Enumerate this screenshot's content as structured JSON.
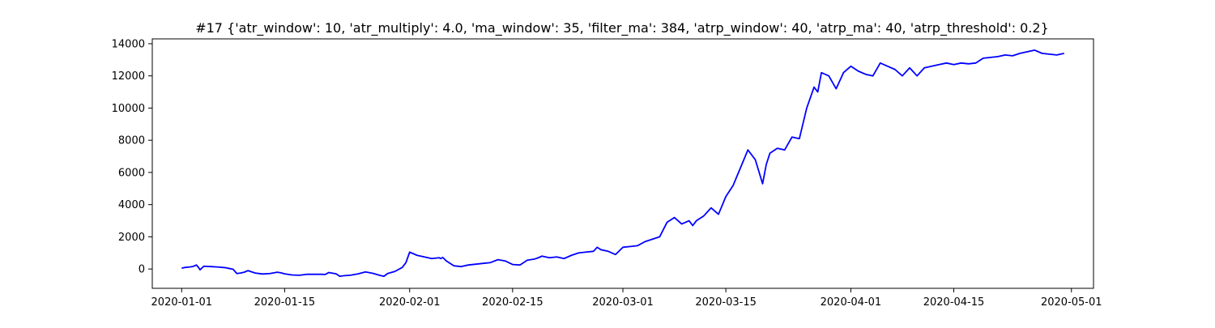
{
  "chart_data": {
    "type": "line",
    "title": "#17 {'atr_window': 10, 'atr_multiply': 4.0, 'ma_window': 35, 'filter_ma': 384, 'atrp_window': 40, 'atrp_ma': 40, 'atrp_threshold': 0.2}",
    "xlabel": "",
    "ylabel": "",
    "x_is_date": true,
    "xlim": [
      "2019-12-28",
      "2020-05-04"
    ],
    "ylim": [
      -1200,
      14300
    ],
    "x_ticks": [
      "2020-01-01",
      "2020-01-15",
      "2020-02-01",
      "2020-02-15",
      "2020-03-01",
      "2020-03-15",
      "2020-04-01",
      "2020-04-15",
      "2020-05-01"
    ],
    "y_ticks": [
      0,
      2000,
      4000,
      6000,
      8000,
      10000,
      12000,
      14000
    ],
    "y_tick_labels": [
      "0",
      "2000",
      "4000",
      "6000",
      "8000",
      "10000",
      "12000",
      "14000"
    ],
    "grid": false,
    "legend": "none",
    "series": [
      {
        "color": "#0000ff",
        "x": [
          "2020-01-01",
          "2020-01-01T12:00",
          "2020-01-02",
          "2020-01-02T12:00",
          "2020-01-03",
          "2020-01-03T06:00",
          "2020-01-03T12:00",
          "2020-01-04",
          "2020-01-05",
          "2020-01-06",
          "2020-01-07",
          "2020-01-07T12:00",
          "2020-01-08",
          "2020-01-08T12:00",
          "2020-01-09",
          "2020-01-09T12:00",
          "2020-01-10",
          "2020-01-11",
          "2020-01-12",
          "2020-01-13",
          "2020-01-14",
          "2020-01-14T12:00",
          "2020-01-15",
          "2020-01-16",
          "2020-01-17",
          "2020-01-18",
          "2020-01-19",
          "2020-01-20",
          "2020-01-20T12:00",
          "2020-01-21",
          "2020-01-22",
          "2020-01-22T12:00",
          "2020-01-23",
          "2020-01-24",
          "2020-01-25",
          "2020-01-26",
          "2020-01-27",
          "2020-01-28",
          "2020-01-28T12:00",
          "2020-01-29",
          "2020-01-30",
          "2020-01-31",
          "2020-01-31T12:00",
          "2020-02-01",
          "2020-02-02",
          "2020-02-03",
          "2020-02-04",
          "2020-02-05",
          "2020-02-05T06:00",
          "2020-02-05T12:00",
          "2020-02-06",
          "2020-02-07",
          "2020-02-08",
          "2020-02-09",
          "2020-02-10",
          "2020-02-11",
          "2020-02-12",
          "2020-02-13",
          "2020-02-14",
          "2020-02-15",
          "2020-02-16",
          "2020-02-17",
          "2020-02-18",
          "2020-02-18T12:00",
          "2020-02-19",
          "2020-02-20",
          "2020-02-21",
          "2020-02-22",
          "2020-02-23",
          "2020-02-24",
          "2020-02-25",
          "2020-02-26",
          "2020-02-26T12:00",
          "2020-02-27",
          "2020-02-28",
          "2020-02-29",
          "2020-03-01",
          "2020-03-02",
          "2020-03-03",
          "2020-03-04",
          "2020-03-05",
          "2020-03-06",
          "2020-03-07",
          "2020-03-08",
          "2020-03-09",
          "2020-03-10",
          "2020-03-10T12:00",
          "2020-03-11",
          "2020-03-12",
          "2020-03-13",
          "2020-03-14",
          "2020-03-15",
          "2020-03-16",
          "2020-03-17",
          "2020-03-18",
          "2020-03-19",
          "2020-03-20",
          "2020-03-20T12:00",
          "2020-03-21",
          "2020-03-22",
          "2020-03-23",
          "2020-03-24",
          "2020-03-25",
          "2020-03-26",
          "2020-03-27",
          "2020-03-27T12:00",
          "2020-03-28",
          "2020-03-29",
          "2020-03-30",
          "2020-03-31",
          "2020-04-01",
          "2020-04-02",
          "2020-04-03",
          "2020-04-04",
          "2020-04-05",
          "2020-04-06",
          "2020-04-07",
          "2020-04-08",
          "2020-04-09",
          "2020-04-10",
          "2020-04-11",
          "2020-04-12",
          "2020-04-13",
          "2020-04-14",
          "2020-04-15",
          "2020-04-16",
          "2020-04-17",
          "2020-04-18",
          "2020-04-19",
          "2020-04-20",
          "2020-04-21",
          "2020-04-22",
          "2020-04-23",
          "2020-04-24",
          "2020-04-25",
          "2020-04-26",
          "2020-04-27",
          "2020-04-28",
          "2020-04-29",
          "2020-04-30"
        ],
        "y": [
          50,
          100,
          120,
          150,
          250,
          120,
          -50,
          170,
          150,
          120,
          80,
          30,
          -20,
          -280,
          -250,
          -200,
          -100,
          -250,
          -310,
          -280,
          -200,
          -240,
          -300,
          -370,
          -390,
          -330,
          -330,
          -330,
          -340,
          -220,
          -300,
          -450,
          -420,
          -380,
          -300,
          -180,
          -270,
          -400,
          -450,
          -280,
          -150,
          100,
          400,
          1050,
          850,
          750,
          650,
          700,
          650,
          720,
          500,
          200,
          150,
          250,
          300,
          350,
          400,
          580,
          500,
          280,
          250,
          550,
          620,
          700,
          800,
          700,
          750,
          650,
          850,
          1000,
          1050,
          1100,
          1350,
          1200,
          1100,
          900,
          1350,
          1400,
          1450,
          1700,
          1850,
          2000,
          2900,
          3200,
          2800,
          3000,
          2700,
          3000,
          3300,
          3800,
          3400,
          4500,
          5200,
          6300,
          7400,
          6800,
          5300,
          6500,
          7200,
          7500,
          7400,
          8200,
          8100,
          10000,
          11300,
          11000,
          12200,
          12000,
          11200,
          12200,
          12600,
          12300,
          12100,
          12000,
          12800,
          12600,
          12400,
          12000,
          12500,
          12000,
          12500,
          12600,
          12700,
          12800,
          12700,
          12800,
          12750,
          12800,
          13100,
          13150,
          13200,
          13300,
          13250,
          13400,
          13500,
          13600,
          13400,
          13350,
          13300,
          13400
        ]
      }
    ]
  }
}
